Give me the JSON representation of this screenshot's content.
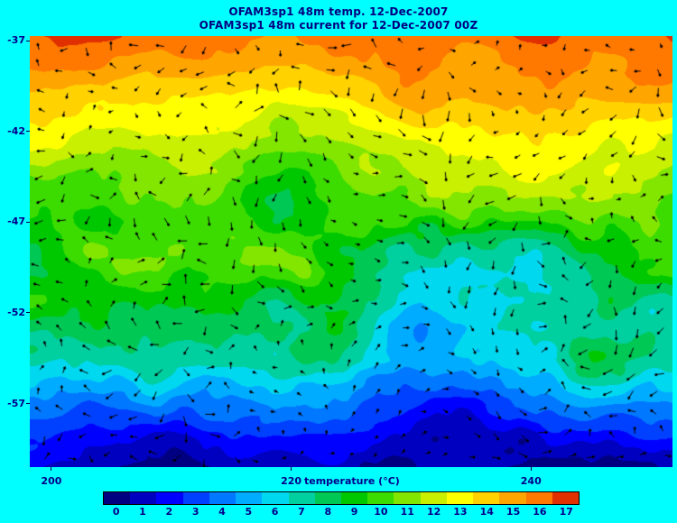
{
  "page": {
    "background_color": "#00FFFF"
  },
  "chart_data": {
    "type": "heatmap",
    "title": "OFAM3sp1 48m temp. 12-Dec-2007",
    "subtitle": "OFAM3sp1 48m current for 12-Dec-2007 00Z",
    "title_color": "#000080",
    "axes": {
      "lat_ticks": [
        -37,
        -42,
        -47,
        -52,
        -57
      ],
      "lon_ticks": [
        200,
        220,
        240
      ],
      "lat_range": [
        -36.75,
        -60.5
      ],
      "lon_range": [
        198.2,
        251.8
      ],
      "grid": false
    },
    "colorbar": {
      "label": "temperature (°C)",
      "ticks": [
        0,
        1,
        2,
        3,
        4,
        5,
        6,
        7,
        8,
        9,
        10,
        11,
        12,
        13,
        14,
        15,
        16,
        17
      ],
      "colors": [
        "#000080",
        "#0000c0",
        "#0000ff",
        "#0040ff",
        "#0078ff",
        "#00acff",
        "#00d8f0",
        "#00cfa0",
        "#00c855",
        "#00c800",
        "#3cdc00",
        "#82e600",
        "#c8f000",
        "#ffff00",
        "#ffd200",
        "#ffa500",
        "#ff7800",
        "#e03000"
      ]
    },
    "temperature_profile": {
      "comment_visible_meaning": "mean 48m temperature read off the colors, warm orange in north to cold dark blue in south",
      "lat": [
        -36.7,
        -39.0,
        -41.0,
        -43.0,
        -45.0,
        -47.0,
        -49.0,
        -51.0,
        -53.0,
        -55.0,
        -57.0,
        -59.0,
        -60.6
      ],
      "temp_c": [
        16.4,
        15.0,
        13.8,
        12.6,
        11.2,
        10.2,
        9.5,
        8.6,
        7.4,
        5.8,
        3.6,
        2.0,
        1.2
      ]
    },
    "overlay": {
      "name": "48m current vectors",
      "marker": "black diamond arrowheads with short tails",
      "marker_color": "#000000"
    }
  }
}
